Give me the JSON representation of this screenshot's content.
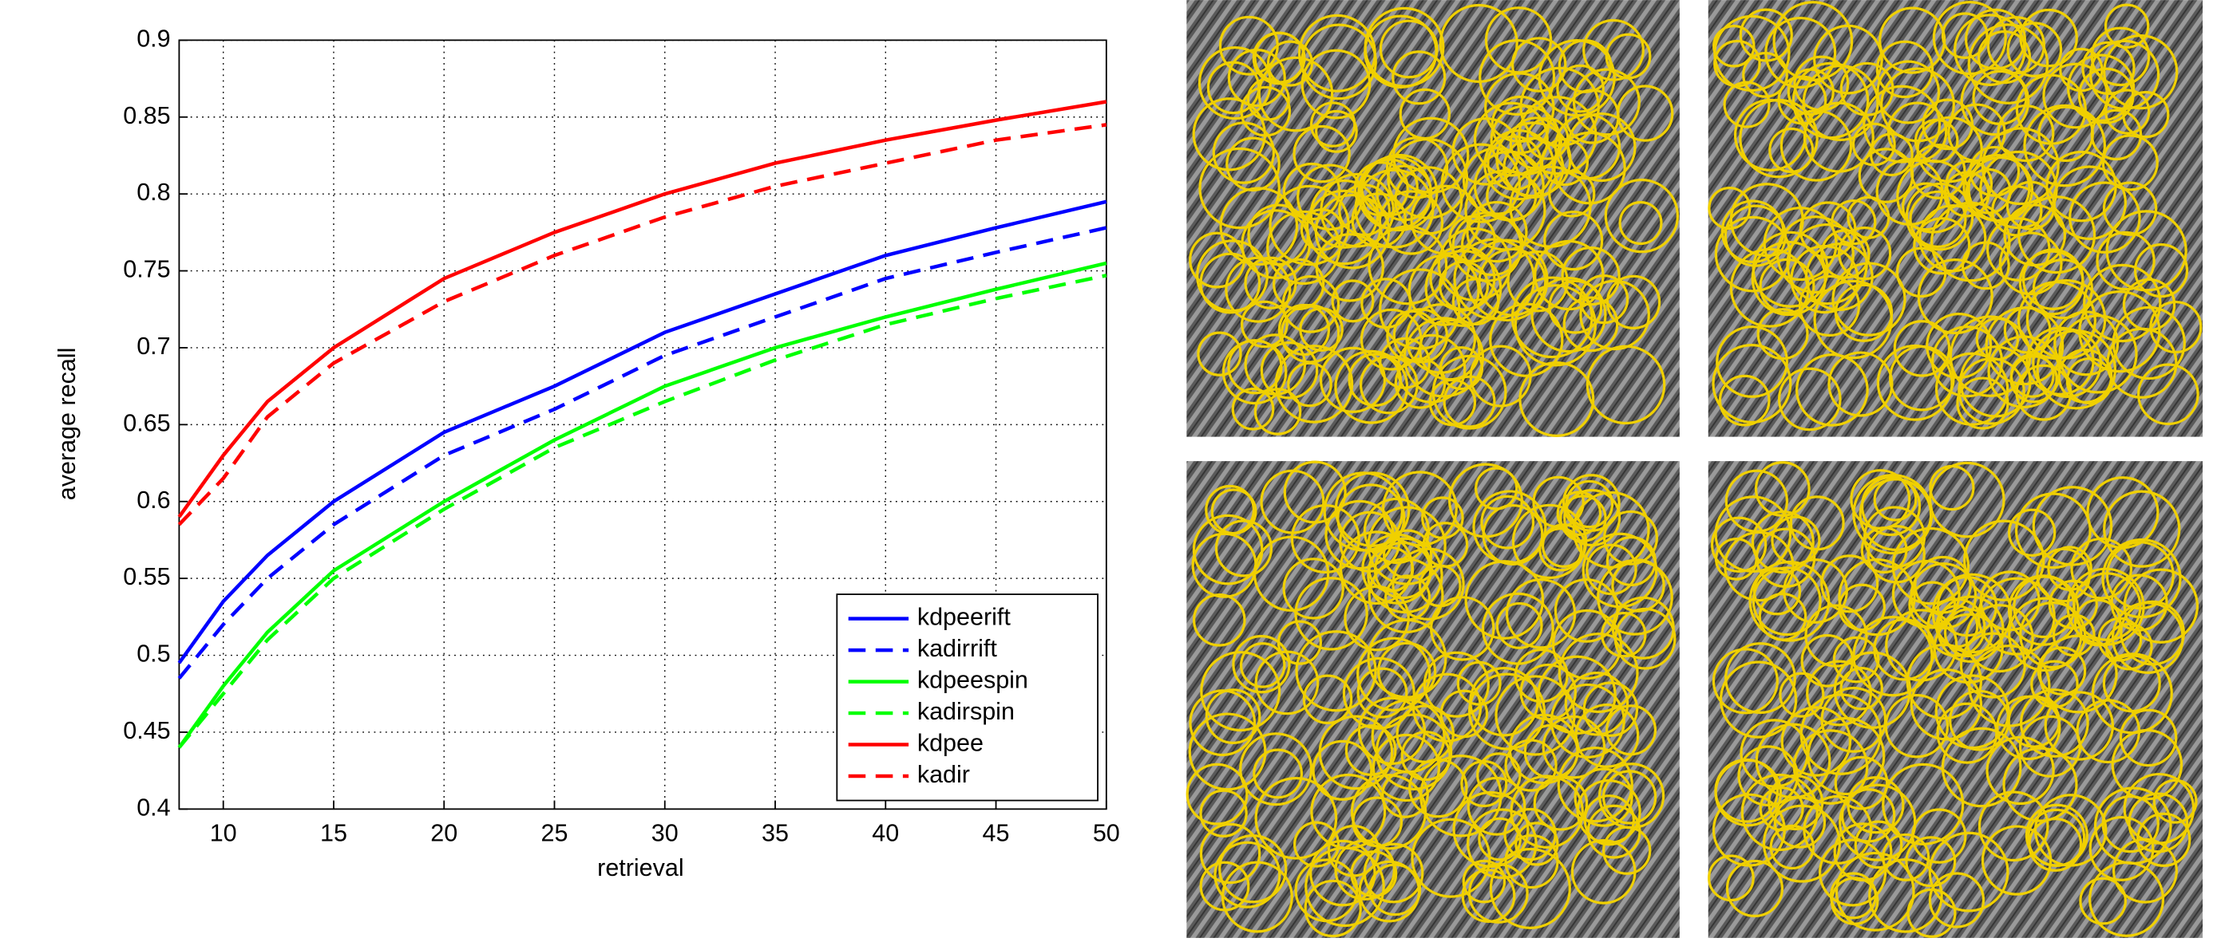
{
  "chart_data": {
    "type": "line",
    "xlabel": "retrieval",
    "ylabel": "average recall",
    "x": [
      8,
      10,
      12,
      15,
      20,
      25,
      30,
      35,
      40,
      45,
      50
    ],
    "xlim": [
      8,
      50
    ],
    "xticks": [
      10,
      15,
      20,
      25,
      30,
      35,
      40,
      45,
      50
    ],
    "ylim": [
      0.4,
      0.9
    ],
    "yticks": [
      0.4,
      0.45,
      0.5,
      0.55,
      0.6,
      0.65,
      0.7,
      0.75,
      0.8,
      0.85,
      0.9
    ],
    "grid": true,
    "legend": "lower right",
    "series": [
      {
        "name": "kdpeerift",
        "color": "#0000ff",
        "line_style": "solid",
        "values": [
          0.495,
          0.535,
          0.565,
          0.6,
          0.645,
          0.675,
          0.71,
          0.735,
          0.76,
          0.778,
          0.795
        ]
      },
      {
        "name": "kadirrift",
        "color": "#0000ff",
        "line_style": "dashed",
        "values": [
          0.485,
          0.52,
          0.55,
          0.585,
          0.63,
          0.66,
          0.695,
          0.72,
          0.745,
          0.762,
          0.778
        ]
      },
      {
        "name": "kdpeespin",
        "color": "#00ff00",
        "line_style": "solid",
        "values": [
          0.44,
          0.48,
          0.515,
          0.555,
          0.6,
          0.64,
          0.675,
          0.7,
          0.72,
          0.738,
          0.755
        ]
      },
      {
        "name": "kadirspin",
        "color": "#00ff00",
        "line_style": "dashed",
        "values": [
          0.44,
          0.475,
          0.51,
          0.55,
          0.595,
          0.635,
          0.665,
          0.692,
          0.715,
          0.732,
          0.747
        ]
      },
      {
        "name": "kdpee",
        "color": "#ff0000",
        "line_style": "solid",
        "values": [
          0.59,
          0.63,
          0.665,
          0.7,
          0.745,
          0.775,
          0.8,
          0.82,
          0.835,
          0.848,
          0.86
        ]
      },
      {
        "name": "kadir",
        "color": "#ff0000",
        "line_style": "dashed",
        "values": [
          0.585,
          0.615,
          0.655,
          0.69,
          0.73,
          0.76,
          0.785,
          0.805,
          0.82,
          0.835,
          0.845
        ]
      }
    ]
  }
}
